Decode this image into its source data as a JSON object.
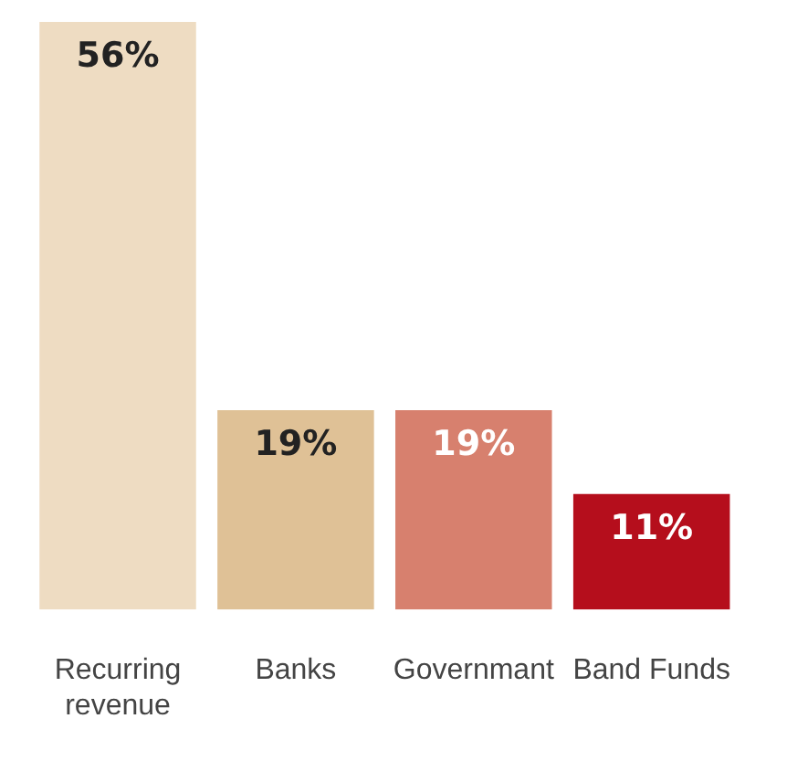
{
  "chart_data": {
    "type": "bar",
    "categories": [
      "Recurring revenue",
      "Banks",
      "Governmant",
      "Band Funds"
    ],
    "values": [
      56,
      19,
      19,
      11
    ],
    "colors": [
      "#eedcc2",
      "#dfc196",
      "#d7806e",
      "#b50e1c"
    ],
    "value_labels": [
      "56%",
      "19%",
      "19%",
      "11%"
    ],
    "grid": false,
    "legend": false
  }
}
